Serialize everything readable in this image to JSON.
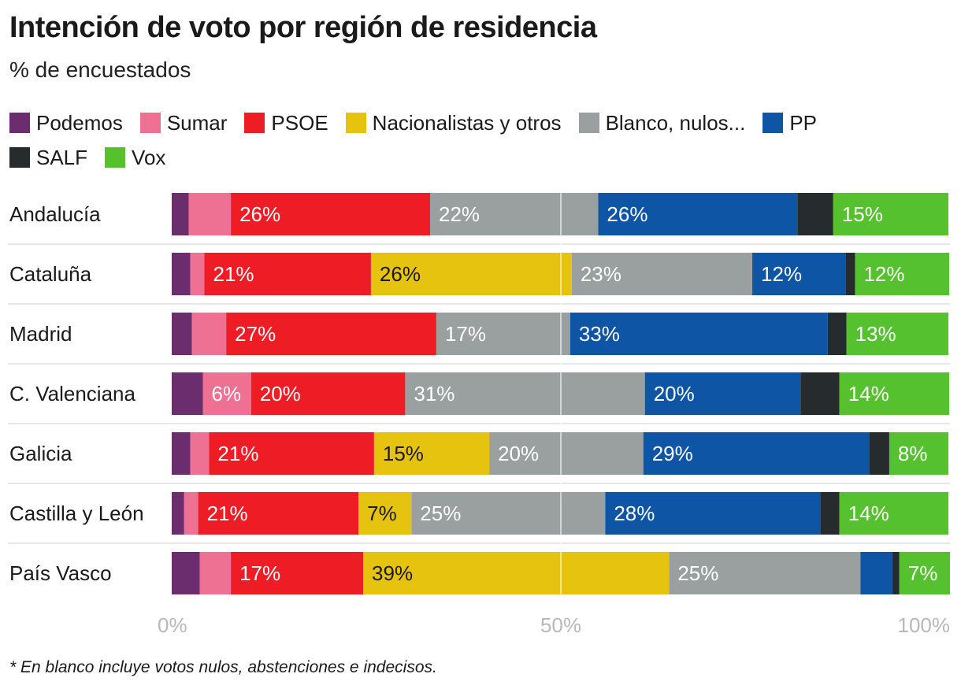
{
  "title": "Intención de voto por región de residencia",
  "subtitle": "% de encuestados",
  "footnote": "* En blanco incluye votos nulos, abstenciones e indecisos.",
  "chart_data": {
    "type": "bar",
    "orientation": "horizontal",
    "stacked": true,
    "xlim": [
      0,
      100
    ],
    "x_ticks": [
      0,
      50,
      100
    ],
    "x_tick_labels": [
      "0%",
      "50%",
      "100%"
    ],
    "legend_position": "top",
    "categories": [
      "Andalucía",
      "Cataluña",
      "Madrid",
      "C. Valenciana",
      "Galicia",
      "Castilla y León",
      "País Vasco"
    ],
    "series": [
      {
        "name": "Podemos",
        "color": "#6b2d6e",
        "values": [
          2.2,
          2.4,
          2.6,
          4,
          2.4,
          1.6,
          3.6
        ],
        "labels": [
          "",
          "",
          "",
          "",
          "",
          "",
          ""
        ]
      },
      {
        "name": "Sumar",
        "color": "#ee7092",
        "values": [
          5.4,
          1.8,
          4.4,
          6.2,
          2.4,
          1.8,
          4
        ],
        "labels": [
          "",
          "",
          "",
          "6%",
          "",
          "",
          ""
        ]
      },
      {
        "name": "PSOE",
        "color": "#ee1c25",
        "values": [
          25.6,
          21.4,
          27,
          19.8,
          21.2,
          20.6,
          17
        ],
        "labels": [
          "26%",
          "21%",
          "27%",
          "20%",
          "21%",
          "21%",
          "17%"
        ]
      },
      {
        "name": "Nacionalistas y otros",
        "color": "#e5c30f",
        "values": [
          0,
          25.8,
          0,
          0,
          14.8,
          6.8,
          39.3
        ],
        "labels": [
          "",
          "26%",
          "",
          "",
          "15%",
          "7%",
          "39%"
        ]
      },
      {
        "name": "Blanco, nulos...",
        "color": "#9aa09f",
        "values": [
          21.6,
          23.2,
          17.2,
          30.8,
          19.8,
          24.9,
          24.6
        ],
        "labels": [
          "22%",
          "23%",
          "17%",
          "31%",
          "20%",
          "25%",
          "25%"
        ]
      },
      {
        "name": "PP",
        "color": "#0e55a6",
        "values": [
          25.6,
          12,
          33.1,
          20,
          29,
          27.7,
          4.1
        ],
        "labels": [
          "26%",
          "12%",
          "33%",
          "20%",
          "29%",
          "28%",
          ""
        ]
      },
      {
        "name": "SALF",
        "color": "#262c2e",
        "values": [
          4.6,
          1.2,
          2.4,
          5,
          2.6,
          2.4,
          0.9
        ],
        "labels": [
          "",
          "",
          "",
          "",
          "",
          "",
          ""
        ]
      },
      {
        "name": "Vox",
        "color": "#55c12f",
        "values": [
          14.8,
          12.1,
          13.1,
          14.1,
          7.6,
          14,
          6.5
        ],
        "labels": [
          "15%",
          "12%",
          "13%",
          "14%",
          "8%",
          "14%",
          "7%"
        ]
      }
    ]
  }
}
